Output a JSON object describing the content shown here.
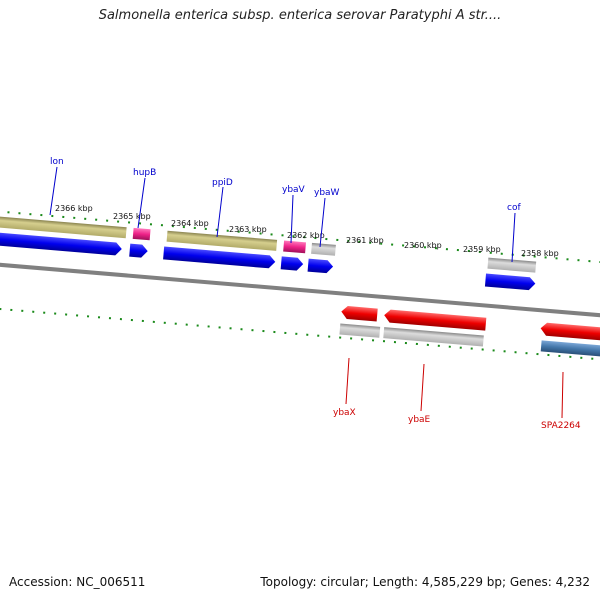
{
  "title": "Salmonella enterica subsp. enterica serovar Paratyphi A str....",
  "footer": {
    "accession": "Accession: NC_006511",
    "topology": "Topology: circular; Length: 4,585,229 bp; Genes: 4,232"
  },
  "ruler_labels": [
    "2366 kbp",
    "2365 kbp",
    "2364 kbp",
    "2363 kbp",
    "2362 kbp",
    "2361 kbp",
    "2360 kbp",
    "2359 kbp",
    "2358 kbp"
  ],
  "genes_top": [
    "lon",
    "hupB",
    "ppiD",
    "ybaV",
    "ybaW",
    "cof"
  ],
  "genes_bottom": [
    "ybaX",
    "ybaE",
    "SPA2264"
  ],
  "colors": {
    "gene_label_top": "#0000cc",
    "gene_label_bottom": "#cc0000",
    "ruler_ticks": "#1a8a1a",
    "cds_blue": "#0000ee",
    "cds_red": "#ee0000",
    "cds_olive": "#b5ae6a",
    "cds_pink": "#ee2288",
    "cds_gray": "#b4b4b4",
    "cds_steel": "#4477aa",
    "backbone": "#808080"
  }
}
